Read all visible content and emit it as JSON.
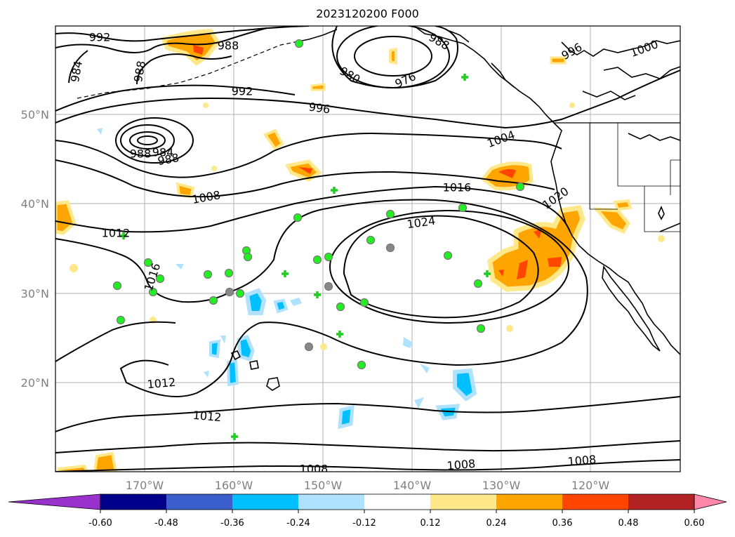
{
  "title": "2023120200 F000",
  "map": {
    "lat_labels": [
      "50°N",
      "40°N",
      "30°N",
      "20°N"
    ],
    "lon_labels": [
      "170°W",
      "160°W",
      "150°W",
      "140°W",
      "130°W",
      "120°W"
    ],
    "isobar_labels": [
      "992",
      "988",
      "984",
      "988",
      "992",
      "996",
      "980",
      "976",
      "988",
      "996",
      "1000",
      "988",
      "984",
      "988",
      "1004",
      "1016",
      "1008",
      "1020",
      "1012",
      "1024",
      "1016",
      "1012",
      "1012",
      "1008",
      "1008",
      "1008"
    ],
    "colors": {
      "land_outline": "#000000",
      "grid": "#b0b0b0",
      "isobar": "#000000",
      "obs_marker": "#22ee22",
      "obs_outline": "#777777"
    }
  },
  "colorbar": {
    "ticks": [
      "-0.60",
      "-0.48",
      "-0.36",
      "-0.24",
      "-0.12",
      "0.12",
      "0.24",
      "0.36",
      "0.48",
      "0.60"
    ],
    "colors": [
      "#9932cc",
      "#00008b",
      "#3a5fcd",
      "#00bfff",
      "#b0e2ff",
      "#ffffff",
      "#ffe88a",
      "#ffa500",
      "#ff4500",
      "#b22222",
      "#ff88aa"
    ]
  }
}
